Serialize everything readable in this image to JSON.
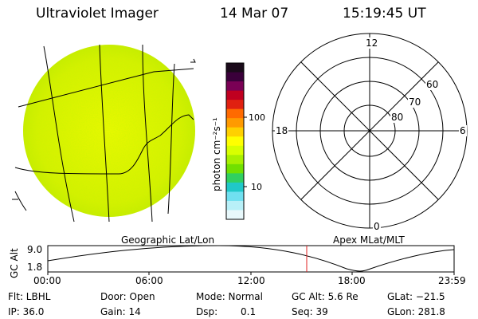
{
  "header": {
    "title": "Ultraviolet Imager",
    "date": "14 Mar 07",
    "time": "15:19:45 UT"
  },
  "colorbar": {
    "unit_label": "photon cm⁻²s⁻¹",
    "ticks": [
      "100",
      "10"
    ],
    "colors": [
      "#1a0a1a",
      "#3a003a",
      "#7a0055",
      "#c00020",
      "#e02010",
      "#ff6a00",
      "#ff9a00",
      "#ffd000",
      "#ffff00",
      "#d8ff00",
      "#a8f000",
      "#70e000",
      "#30d060",
      "#20c8c8",
      "#70e0f0",
      "#b8f0f8",
      "#e8f8fb"
    ]
  },
  "polar_plot": {
    "labels": {
      "top": "12",
      "bottom": "0",
      "left": "18",
      "right": "6"
    },
    "lat_labels": [
      "80",
      "70",
      "60"
    ]
  },
  "orbit_strip": {
    "left_label": "Geographic Lat/Lon",
    "right_label": "Apex  MLat/MLT",
    "y_axis_label": "GC Alt",
    "y_ticks": [
      "9.0",
      "1.8"
    ],
    "x_ticks": [
      "00:00",
      "06:00",
      "12:00",
      "18:00",
      "23:59"
    ],
    "marker_color": "#e02020"
  },
  "status": {
    "flt": "Flt: LBHL",
    "ip": "IP: 36.0",
    "door": "Door: Open",
    "gain": "Gain: 14",
    "mode": "Mode: Normal",
    "dsp_label": "Dsp:",
    "dsp_value": "0.1",
    "gc_alt": "GC Alt: 5.6 Re",
    "seq": "Seq: 39",
    "glat": "GLat: −21.5",
    "glon": "GLon: 281.8"
  }
}
